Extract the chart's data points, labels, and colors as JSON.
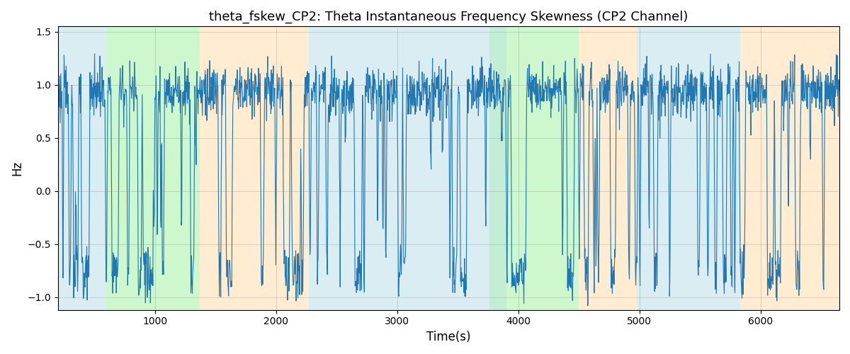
{
  "title": "theta_fskew_CP2: Theta Instantaneous Frequency Skewness (CP2 Channel)",
  "xlabel": "Time(s)",
  "ylabel": "Hz",
  "xlim": [
    200,
    6650
  ],
  "ylim": [
    -1.12,
    1.55
  ],
  "yticks": [
    -1.0,
    -0.5,
    0.0,
    0.5,
    1.0,
    1.5
  ],
  "xticks": [
    1000,
    2000,
    3000,
    4000,
    5000,
    6000
  ],
  "line_color": "#1f77b4",
  "line_width": 0.8,
  "bg_color": "#ffffff",
  "grid_color": "gray",
  "grid_alpha": 0.4,
  "colored_bands": [
    {
      "xmin": 200,
      "xmax": 600,
      "color": "#add8e6",
      "alpha": 0.45
    },
    {
      "xmin": 600,
      "xmax": 1370,
      "color": "#90ee90",
      "alpha": 0.45
    },
    {
      "xmin": 1370,
      "xmax": 2270,
      "color": "#ffd59a",
      "alpha": 0.45
    },
    {
      "xmin": 2270,
      "xmax": 3760,
      "color": "#add8e6",
      "alpha": 0.45
    },
    {
      "xmin": 3760,
      "xmax": 3900,
      "color": "#add8e6",
      "alpha": 0.45
    },
    {
      "xmin": 3760,
      "xmax": 3900,
      "color": "#90ee90",
      "alpha": 0.3
    },
    {
      "xmin": 3900,
      "xmax": 4500,
      "color": "#90ee90",
      "alpha": 0.45
    },
    {
      "xmin": 4500,
      "xmax": 4980,
      "color": "#ffd59a",
      "alpha": 0.45
    },
    {
      "xmin": 4980,
      "xmax": 5830,
      "color": "#add8e6",
      "alpha": 0.45
    },
    {
      "xmin": 5830,
      "xmax": 6650,
      "color": "#ffd59a",
      "alpha": 0.45
    }
  ],
  "seed": 123,
  "n_points": 2200
}
